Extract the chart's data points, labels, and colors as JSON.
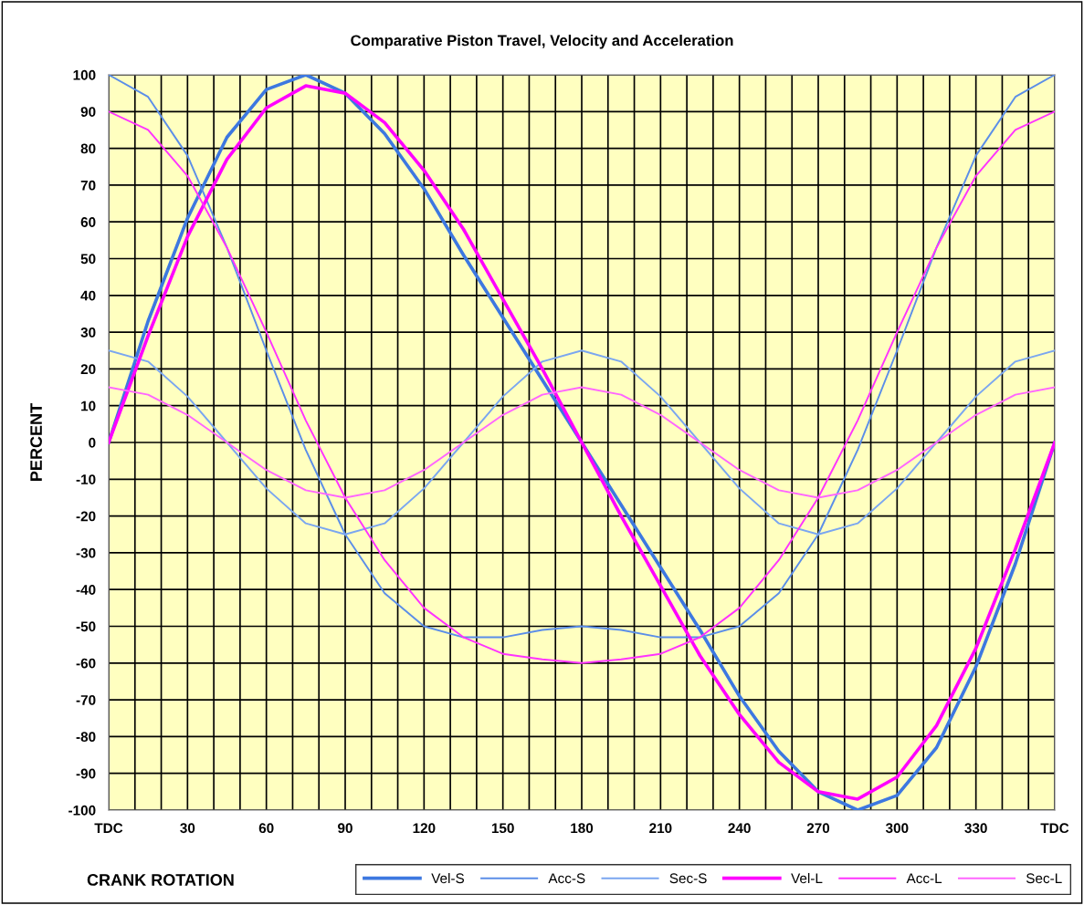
{
  "chart_data": {
    "type": "line",
    "title": "Comparative Piston Travel, Velocity and Acceleration",
    "xlabel": "CRANK ROTATION",
    "ylabel": "PERCENT",
    "x": [
      0,
      15,
      30,
      45,
      60,
      75,
      90,
      105,
      120,
      135,
      150,
      165,
      180,
      195,
      210,
      225,
      240,
      255,
      270,
      285,
      300,
      315,
      330,
      345,
      360
    ],
    "series": [
      {
        "name": "Vel-S",
        "color": "#3d78e0",
        "values": [
          0,
          33,
          61,
          83,
          96,
          100,
          95,
          84,
          69,
          51,
          34,
          17,
          0,
          -17,
          -34,
          -51,
          -69,
          -84,
          -95,
          -100,
          -96,
          -83,
          -61,
          -33,
          0
        ]
      },
      {
        "name": "Acc-S",
        "color": "#5b8ee8",
        "values": [
          100,
          94,
          78,
          53,
          25,
          -2,
          -25,
          -41,
          -50,
          -53,
          -53,
          -51,
          -50,
          -51,
          -53,
          -53,
          -50,
          -41,
          -25,
          -2,
          25,
          53,
          78,
          94,
          100
        ]
      },
      {
        "name": "Sec-S",
        "color": "#7aa6f0",
        "values": [
          25,
          22,
          12.5,
          0,
          -12.5,
          -22,
          -25,
          -22,
          -12.5,
          0,
          12.5,
          22,
          25,
          22,
          12.5,
          0,
          -12.5,
          -22,
          -25,
          -22,
          -12.5,
          0,
          12.5,
          22,
          25
        ]
      },
      {
        "name": "Vel-L",
        "color": "#ff00ff",
        "values": [
          0,
          29,
          56,
          77,
          91,
          97,
          95,
          87,
          74,
          58,
          39,
          20,
          0,
          -20,
          -39,
          -58,
          -74,
          -87,
          -95,
          -97,
          -91,
          -77,
          -56,
          -29,
          0
        ]
      },
      {
        "name": "Acc-L",
        "color": "#ff33ff",
        "values": [
          90,
          85,
          72.5,
          53,
          30,
          6,
          -15,
          -32,
          -45,
          -53,
          -57.5,
          -59,
          -60,
          -59,
          -57.5,
          -53,
          -45,
          -32,
          -15,
          6,
          30,
          53,
          72.5,
          85,
          90
        ]
      },
      {
        "name": "Sec-L",
        "color": "#ff66ff",
        "values": [
          15,
          13,
          7.5,
          0,
          -7.5,
          -13,
          -15,
          -13,
          -7.5,
          0,
          7.5,
          13,
          15,
          13,
          7.5,
          0,
          -7.5,
          -13,
          -15,
          -13,
          -7.5,
          0,
          7.5,
          13,
          15
        ]
      }
    ],
    "xlim": [
      0,
      360
    ],
    "xticks": [
      {
        "value": 0,
        "label": "TDC"
      },
      {
        "value": 10,
        "label": null
      },
      {
        "value": 20,
        "label": null
      },
      30,
      {
        "value": 40,
        "label": null
      },
      {
        "value": 50,
        "label": null
      },
      60,
      {
        "value": 70,
        "label": null
      },
      {
        "value": 80,
        "label": null
      },
      90,
      {
        "value": 100,
        "label": null
      },
      {
        "value": 110,
        "label": null
      },
      120,
      {
        "value": 130,
        "label": null
      },
      {
        "value": 140,
        "label": null
      },
      150,
      {
        "value": 160,
        "label": null
      },
      {
        "value": 170,
        "label": null
      },
      180,
      {
        "value": 190,
        "label": null
      },
      {
        "value": 200,
        "label": null
      },
      210,
      {
        "value": 220,
        "label": null
      },
      {
        "value": 230,
        "label": null
      },
      240,
      {
        "value": 250,
        "label": null
      },
      {
        "value": 260,
        "label": null
      },
      270,
      {
        "value": 280,
        "label": null
      },
      {
        "value": 290,
        "label": null
      },
      300,
      {
        "value": 310,
        "label": null
      },
      {
        "value": 320,
        "label": null
      },
      330,
      {
        "value": 340,
        "label": null
      },
      {
        "value": 350,
        "label": null
      },
      {
        "value": 360,
        "label": "TDC"
      }
    ],
    "ylim": [
      -100,
      100
    ],
    "yticks": [
      -100,
      -90,
      -80,
      -70,
      -60,
      -50,
      -40,
      -30,
      -20,
      -10,
      0,
      10,
      20,
      30,
      40,
      50,
      60,
      70,
      80,
      90,
      100
    ],
    "grid": true,
    "legend": "bottom",
    "marker": "none",
    "line_style": "solid"
  }
}
